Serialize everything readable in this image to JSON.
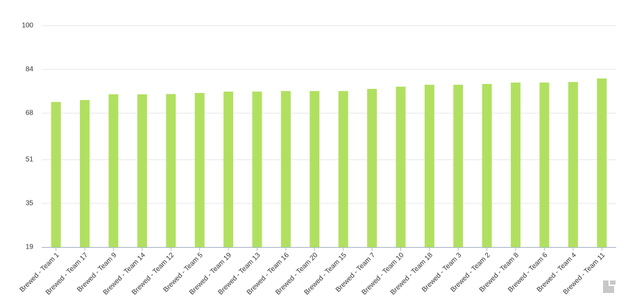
{
  "chart_data": {
    "type": "bar",
    "categories": [
      "Brewed - Team 1",
      "Brewed - Team 17",
      "Brewed - Team 9",
      "Brewed - Team 14",
      "Brewed - Team 12",
      "Brewed - Team 5",
      "Brewed - Team 19",
      "Brewed - Team 13",
      "Brewed - Team 16",
      "Brewed - Team 20",
      "Brewed - Team 15",
      "Brewed - Team 7",
      "Brewed - Team 10",
      "Brewed - Team 18",
      "Brewed - Team 3",
      "Brewed - Team 2",
      "Brewed - Team 8",
      "Brewed - Team 6",
      "Brewed - Team 4",
      "Brewed - Team 11"
    ],
    "values": [
      72.1,
      72.8,
      74.9,
      74.9,
      75.0,
      75.4,
      75.9,
      75.9,
      76.1,
      76.1,
      76.1,
      76.9,
      77.7,
      78.4,
      78.4,
      78.7,
      79.2,
      79.2,
      79.4,
      80.7
    ],
    "color": "#b1e060",
    "ylim": [
      19,
      100
    ],
    "yticks": [
      19,
      35,
      51,
      68,
      84,
      100
    ],
    "grid": true
  }
}
